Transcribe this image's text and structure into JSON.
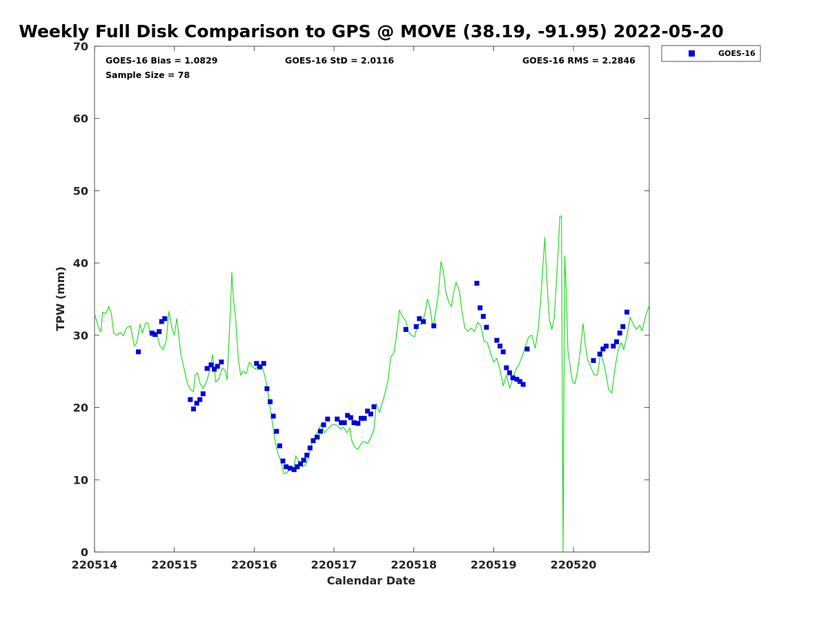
{
  "chart_data": {
    "type": "scatter+line",
    "title": "Weekly Full Disk Comparison to GPS @ MOVE (38.19, -91.95) 2022-05-20",
    "xlabel": "Calendar Date",
    "ylabel": "TPW (mm)",
    "xlim": [
      0,
      6.95
    ],
    "ylim": [
      0,
      70
    ],
    "x_tick_values": [
      0,
      1,
      2,
      3,
      4,
      5,
      6
    ],
    "x_tick_labels": [
      "220514",
      "220515",
      "220516",
      "220517",
      "220518",
      "220519",
      "220520"
    ],
    "y_ticks": [
      0,
      10,
      20,
      30,
      40,
      50,
      60,
      70
    ],
    "stats": {
      "bias": "GOES-16 Bias = 1.0829",
      "std": "GOES-16 StD = 2.0116",
      "rms": "GOES-16 RMS = 2.2846",
      "sample": "Sample Size = 78"
    },
    "legend": {
      "label": "GOES-16",
      "position": "top-right outside"
    },
    "colors": {
      "goes16": "#0000dd",
      "gps": "#22dd22"
    },
    "series": [
      {
        "name": "GOES-16",
        "style": "square-markers",
        "points": [
          [
            0.55,
            27.7
          ],
          [
            0.72,
            30.3
          ],
          [
            0.76,
            30.1
          ],
          [
            0.81,
            30.5
          ],
          [
            0.84,
            31.9
          ],
          [
            0.88,
            32.3
          ],
          [
            1.2,
            21.1
          ],
          [
            1.24,
            19.8
          ],
          [
            1.28,
            20.6
          ],
          [
            1.32,
            21.1
          ],
          [
            1.36,
            21.9
          ],
          [
            1.41,
            25.4
          ],
          [
            1.46,
            25.9
          ],
          [
            1.5,
            25.3
          ],
          [
            1.54,
            25.7
          ],
          [
            1.59,
            26.3
          ],
          [
            2.03,
            26.1
          ],
          [
            2.07,
            25.6
          ],
          [
            2.12,
            26.1
          ],
          [
            2.16,
            22.6
          ],
          [
            2.2,
            20.8
          ],
          [
            2.24,
            18.8
          ],
          [
            2.28,
            16.7
          ],
          [
            2.32,
            14.7
          ],
          [
            2.36,
            12.6
          ],
          [
            2.4,
            11.8
          ],
          [
            2.45,
            11.6
          ],
          [
            2.5,
            11.4
          ],
          [
            2.54,
            11.8
          ],
          [
            2.58,
            12.2
          ],
          [
            2.62,
            12.7
          ],
          [
            2.66,
            13.4
          ],
          [
            2.7,
            14.4
          ],
          [
            2.74,
            15.4
          ],
          [
            2.79,
            15.9
          ],
          [
            2.83,
            16.7
          ],
          [
            2.87,
            17.6
          ],
          [
            2.92,
            18.4
          ],
          [
            3.04,
            18.4
          ],
          [
            3.09,
            17.9
          ],
          [
            3.13,
            17.9
          ],
          [
            3.17,
            18.9
          ],
          [
            3.21,
            18.6
          ],
          [
            3.25,
            17.9
          ],
          [
            3.3,
            17.8
          ],
          [
            3.34,
            18.5
          ],
          [
            3.38,
            18.5
          ],
          [
            3.42,
            19.5
          ],
          [
            3.46,
            19.1
          ],
          [
            3.5,
            20.1
          ],
          [
            3.9,
            30.8
          ],
          [
            4.03,
            31.2
          ],
          [
            4.07,
            32.3
          ],
          [
            4.12,
            31.9
          ],
          [
            4.25,
            31.3
          ],
          [
            4.79,
            37.2
          ],
          [
            4.83,
            33.8
          ],
          [
            4.87,
            32.6
          ],
          [
            4.91,
            31.1
          ],
          [
            5.04,
            29.3
          ],
          [
            5.08,
            28.5
          ],
          [
            5.12,
            27.7
          ],
          [
            5.16,
            25.5
          ],
          [
            5.2,
            24.8
          ],
          [
            5.24,
            24.1
          ],
          [
            5.29,
            23.9
          ],
          [
            5.33,
            23.6
          ],
          [
            5.37,
            23.2
          ],
          [
            5.42,
            28.1
          ],
          [
            6.25,
            26.5
          ],
          [
            6.33,
            27.4
          ],
          [
            6.37,
            28.1
          ],
          [
            6.41,
            28.5
          ],
          [
            6.5,
            28.5
          ],
          [
            6.54,
            29.1
          ],
          [
            6.58,
            30.3
          ],
          [
            6.62,
            31.2
          ],
          [
            6.67,
            33.2
          ]
        ]
      },
      {
        "name": "GPS",
        "style": "line",
        "points": [
          [
            0.0,
            33.0
          ],
          [
            0.05,
            31.0
          ],
          [
            0.08,
            30.5
          ],
          [
            0.1,
            33.2
          ],
          [
            0.14,
            33.0
          ],
          [
            0.18,
            34.0
          ],
          [
            0.21,
            33.0
          ],
          [
            0.24,
            30.3
          ],
          [
            0.28,
            30.0
          ],
          [
            0.32,
            30.4
          ],
          [
            0.36,
            29.9
          ],
          [
            0.4,
            31.0
          ],
          [
            0.45,
            31.3
          ],
          [
            0.5,
            28.5
          ],
          [
            0.53,
            29.0
          ],
          [
            0.57,
            31.5
          ],
          [
            0.6,
            30.3
          ],
          [
            0.64,
            31.7
          ],
          [
            0.67,
            31.7
          ],
          [
            0.7,
            30.0
          ],
          [
            0.74,
            29.8
          ],
          [
            0.78,
            30.2
          ],
          [
            0.82,
            28.5
          ],
          [
            0.86,
            28.0
          ],
          [
            0.9,
            29.3
          ],
          [
            0.93,
            33.3
          ],
          [
            0.97,
            31.0
          ],
          [
            1.0,
            30.0
          ],
          [
            1.03,
            32.3
          ],
          [
            1.05,
            30.5
          ],
          [
            1.08,
            27.5
          ],
          [
            1.12,
            25.5
          ],
          [
            1.16,
            23.5
          ],
          [
            1.2,
            22.5
          ],
          [
            1.24,
            22.2
          ],
          [
            1.26,
            24.5
          ],
          [
            1.29,
            24.8
          ],
          [
            1.32,
            23.4
          ],
          [
            1.36,
            22.6
          ],
          [
            1.4,
            23.5
          ],
          [
            1.44,
            25.0
          ],
          [
            1.48,
            27.3
          ],
          [
            1.52,
            23.5
          ],
          [
            1.56,
            24.0
          ],
          [
            1.6,
            25.5
          ],
          [
            1.64,
            25.0
          ],
          [
            1.66,
            23.8
          ],
          [
            1.68,
            28.0
          ],
          [
            1.7,
            33.0
          ],
          [
            1.72,
            38.7
          ],
          [
            1.74,
            35.0
          ],
          [
            1.77,
            32.0
          ],
          [
            1.8,
            27.0
          ],
          [
            1.83,
            24.5
          ],
          [
            1.86,
            25.0
          ],
          [
            1.9,
            24.7
          ],
          [
            1.94,
            26.3
          ],
          [
            1.98,
            25.6
          ],
          [
            2.02,
            25.3
          ],
          [
            2.06,
            26.0
          ],
          [
            2.1,
            25.8
          ],
          [
            2.14,
            24.0
          ],
          [
            2.18,
            21.5
          ],
          [
            2.22,
            18.5
          ],
          [
            2.26,
            15.5
          ],
          [
            2.3,
            13.5
          ],
          [
            2.34,
            12.5
          ],
          [
            2.37,
            10.8
          ],
          [
            2.41,
            11.0
          ],
          [
            2.45,
            11.5
          ],
          [
            2.49,
            11.2
          ],
          [
            2.52,
            13.3
          ],
          [
            2.56,
            12.5
          ],
          [
            2.6,
            11.8
          ],
          [
            2.64,
            12.0
          ],
          [
            2.68,
            13.0
          ],
          [
            2.72,
            15.0
          ],
          [
            2.76,
            16.0
          ],
          [
            2.8,
            16.7
          ],
          [
            2.84,
            17.7
          ],
          [
            2.88,
            16.5
          ],
          [
            2.92,
            17.0
          ],
          [
            2.96,
            17.5
          ],
          [
            3.0,
            17.7
          ],
          [
            3.04,
            17.5
          ],
          [
            3.08,
            17.0
          ],
          [
            3.12,
            17.3
          ],
          [
            3.16,
            16.5
          ],
          [
            3.2,
            17.2
          ],
          [
            3.22,
            15.5
          ],
          [
            3.26,
            14.5
          ],
          [
            3.3,
            14.2
          ],
          [
            3.34,
            15.0
          ],
          [
            3.38,
            15.3
          ],
          [
            3.42,
            15.0
          ],
          [
            3.46,
            15.8
          ],
          [
            3.5,
            17.0
          ],
          [
            3.53,
            20.5
          ],
          [
            3.57,
            19.3
          ],
          [
            3.6,
            20.5
          ],
          [
            3.64,
            22.0
          ],
          [
            3.68,
            24.0
          ],
          [
            3.71,
            27.0
          ],
          [
            3.75,
            27.5
          ],
          [
            3.79,
            30.5
          ],
          [
            3.82,
            33.5
          ],
          [
            3.86,
            32.5
          ],
          [
            3.9,
            32.0
          ],
          [
            3.93,
            30.5
          ],
          [
            3.97,
            30.0
          ],
          [
            4.01,
            29.8
          ],
          [
            4.05,
            31.5
          ],
          [
            4.1,
            31.5
          ],
          [
            4.14,
            33.0
          ],
          [
            4.17,
            35.0
          ],
          [
            4.2,
            34.0
          ],
          [
            4.24,
            31.0
          ],
          [
            4.27,
            33.0
          ],
          [
            4.31,
            36.0
          ],
          [
            4.34,
            40.2
          ],
          [
            4.37,
            39.0
          ],
          [
            4.4,
            36.0
          ],
          [
            4.44,
            34.5
          ],
          [
            4.47,
            34.0
          ],
          [
            4.5,
            36.0
          ],
          [
            4.53,
            37.3
          ],
          [
            4.57,
            36.2
          ],
          [
            4.6,
            33.5
          ],
          [
            4.64,
            31.0
          ],
          [
            4.68,
            30.5
          ],
          [
            4.72,
            31.0
          ],
          [
            4.76,
            30.5
          ],
          [
            4.8,
            31.8
          ],
          [
            4.84,
            31.3
          ],
          [
            4.88,
            29.2
          ],
          [
            4.92,
            29.0
          ],
          [
            4.96,
            27.6
          ],
          [
            5.0,
            26.3
          ],
          [
            5.04,
            26.8
          ],
          [
            5.08,
            25.2
          ],
          [
            5.12,
            23.0
          ],
          [
            5.16,
            24.5
          ],
          [
            5.2,
            22.7
          ],
          [
            5.24,
            24.0
          ],
          [
            5.28,
            25.3
          ],
          [
            5.32,
            26.0
          ],
          [
            5.36,
            27.2
          ],
          [
            5.4,
            28.5
          ],
          [
            5.44,
            29.8
          ],
          [
            5.48,
            30.0
          ],
          [
            5.52,
            28.2
          ],
          [
            5.56,
            31.0
          ],
          [
            5.59,
            35.0
          ],
          [
            5.62,
            40.0
          ],
          [
            5.64,
            43.5
          ],
          [
            5.67,
            37.0
          ],
          [
            5.7,
            32.0
          ],
          [
            5.73,
            30.8
          ],
          [
            5.76,
            32.5
          ],
          [
            5.79,
            38.0
          ],
          [
            5.81,
            42.0
          ],
          [
            5.83,
            46.5
          ],
          [
            5.85,
            46.5
          ],
          [
            5.87,
            0.0
          ],
          [
            5.89,
            41.0
          ],
          [
            5.91,
            36.0
          ],
          [
            5.93,
            28.0
          ],
          [
            5.96,
            25.5
          ],
          [
            5.99,
            23.5
          ],
          [
            6.02,
            23.3
          ],
          [
            6.05,
            25.0
          ],
          [
            6.08,
            27.5
          ],
          [
            6.1,
            29.5
          ],
          [
            6.12,
            31.6
          ],
          [
            6.15,
            28.5
          ],
          [
            6.18,
            26.5
          ],
          [
            6.22,
            25.5
          ],
          [
            6.26,
            24.5
          ],
          [
            6.3,
            24.5
          ],
          [
            6.34,
            27.5
          ],
          [
            6.37,
            26.5
          ],
          [
            6.4,
            25.0
          ],
          [
            6.44,
            22.5
          ],
          [
            6.48,
            22.0
          ],
          [
            6.52,
            25.5
          ],
          [
            6.56,
            28.0
          ],
          [
            6.6,
            29.0
          ],
          [
            6.63,
            28.0
          ],
          [
            6.67,
            30.0
          ],
          [
            6.71,
            32.5
          ],
          [
            6.75,
            31.5
          ],
          [
            6.79,
            30.8
          ],
          [
            6.83,
            31.4
          ],
          [
            6.86,
            30.6
          ],
          [
            6.9,
            32.5
          ],
          [
            6.95,
            34.2
          ]
        ]
      }
    ]
  }
}
